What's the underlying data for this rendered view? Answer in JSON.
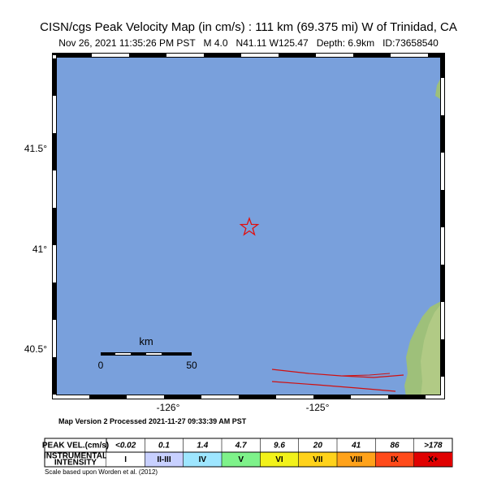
{
  "header": {
    "title": "CISN/cgs Peak Velocity Map (in cm/s) : 111 km (69.375 mi) W of Trinidad, CA",
    "subtitle": "Nov 26, 2021 11:35:26 PM PST   M 4.0   N41.11 W125.47   Depth: 6.9km   ID:73658540"
  },
  "map": {
    "lat_labels": [
      "41.5°",
      "41°",
      "40.5°"
    ],
    "lon_labels": [
      "-126°",
      "-125°"
    ],
    "scale_bar": {
      "unit": "km",
      "labels": [
        "0",
        "50"
      ]
    }
  },
  "footer": {
    "processed": "Map Version 2 Processed 2021-11-27 09:33:39 AM PST"
  },
  "legend": {
    "velocity_header": "PEAK VEL.(cm/s)",
    "velocities": [
      "<0.02",
      "0.1",
      "1.4",
      "4.7",
      "9.6",
      "20",
      "41",
      "86",
      ">178"
    ],
    "intensity_header": [
      "INSTRUMENTAL",
      "INTENSITY"
    ],
    "intensities": [
      "I",
      "II-III",
      "IV",
      "V",
      "VI",
      "VII",
      "VIII",
      "IX",
      "X+"
    ],
    "note": "Scale based upon Worden et al. (2012)"
  }
}
